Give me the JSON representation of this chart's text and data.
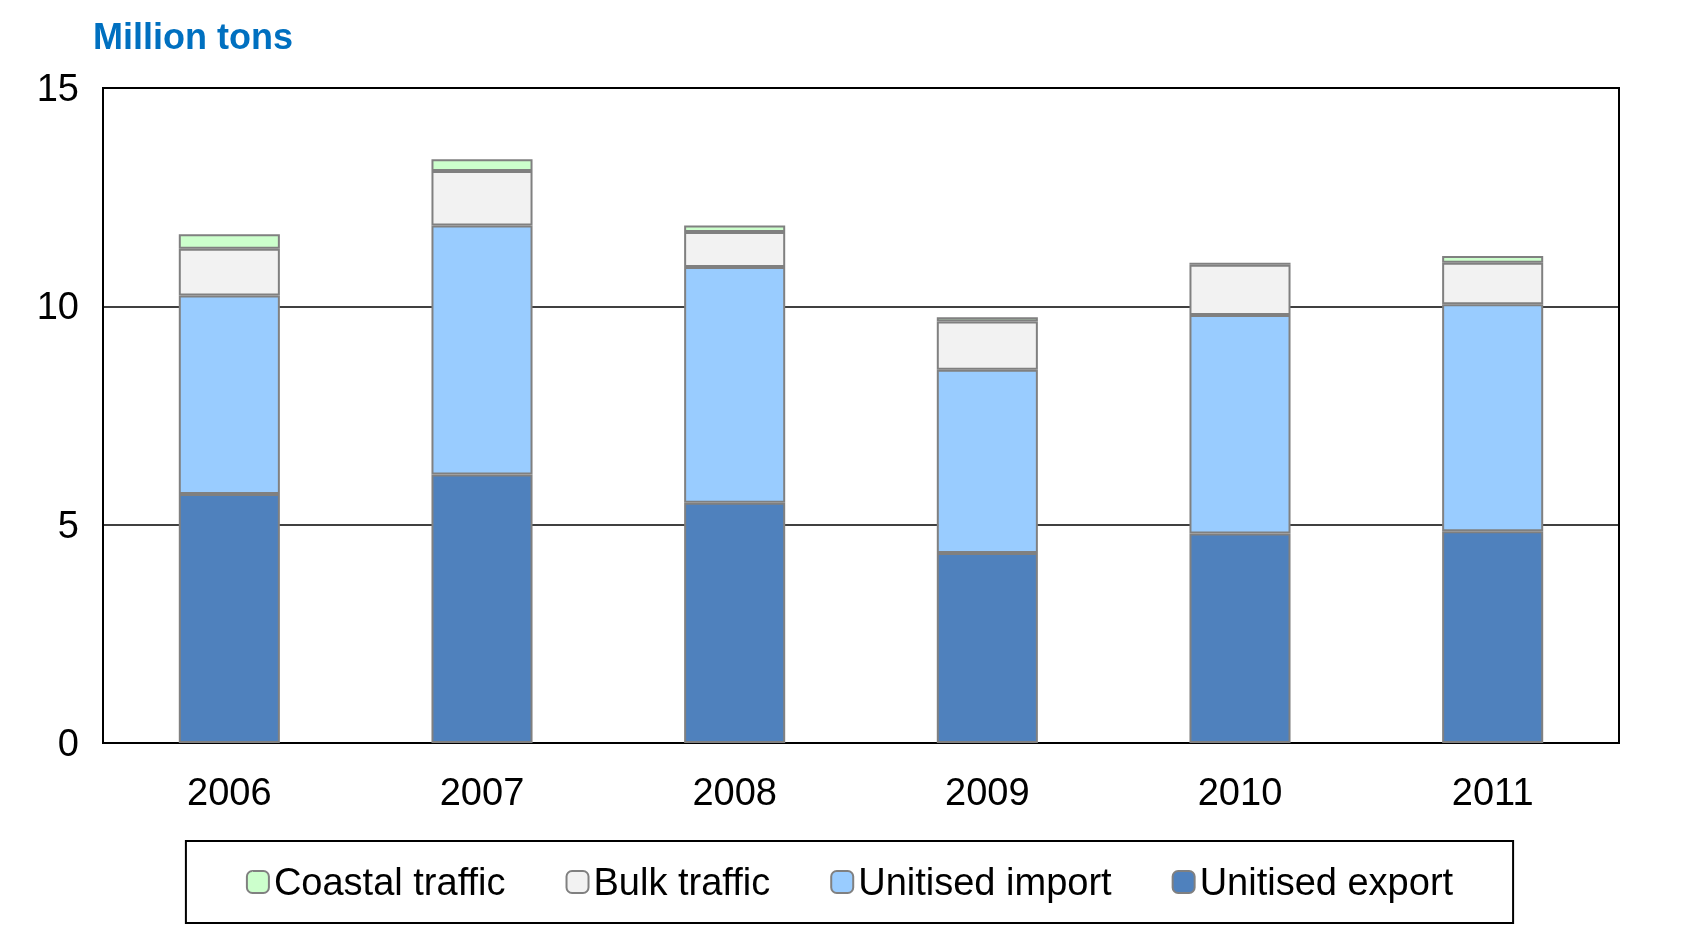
{
  "chart_data": {
    "type": "bar",
    "stacked": true,
    "ylabel": "Million tons",
    "categories": [
      "2006",
      "2007",
      "2008",
      "2009",
      "2010",
      "2011"
    ],
    "series": [
      {
        "name": "Unitised export",
        "color": "#4f81bd",
        "values": [
          5.7,
          6.15,
          5.5,
          4.35,
          4.8,
          4.85
        ]
      },
      {
        "name": "Unitised import",
        "color": "#99ccff",
        "values": [
          4.55,
          5.7,
          5.4,
          4.2,
          5.0,
          5.2
        ]
      },
      {
        "name": "Bulk traffic",
        "color": "#f2f2f2",
        "values": [
          1.07,
          1.25,
          0.8,
          1.1,
          1.15,
          0.95
        ]
      },
      {
        "name": "Coastal traffic",
        "color": "#ccffcc",
        "values": [
          0.33,
          0.27,
          0.15,
          0.1,
          0.05,
          0.15
        ]
      }
    ],
    "ylim": [
      0,
      15
    ],
    "yticks": [
      0,
      5,
      10,
      15
    ],
    "grid": "y",
    "legend": "bottom"
  }
}
